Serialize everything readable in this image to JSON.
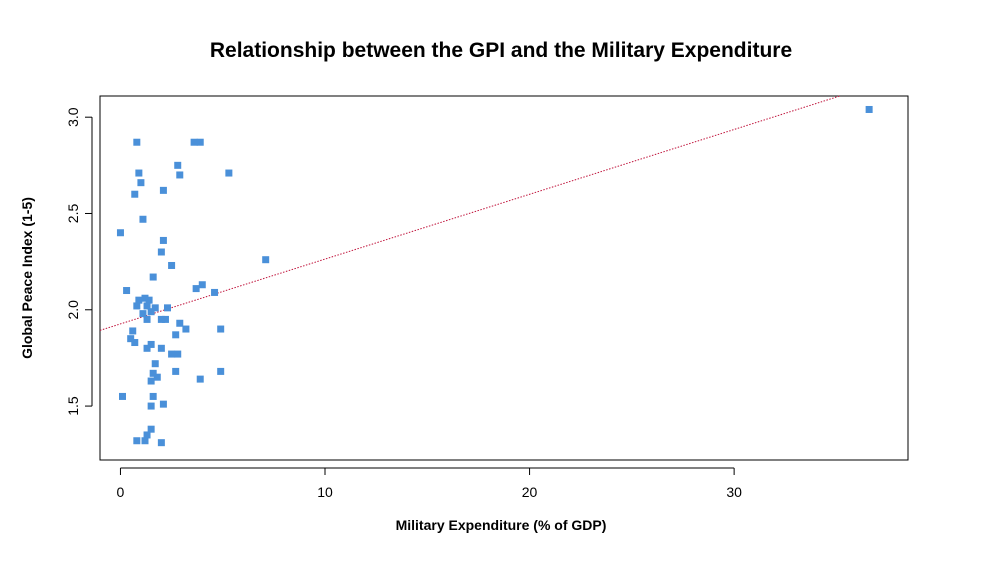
{
  "chart_data": {
    "type": "scatter",
    "title": "Relationship between the GPI and the Military Expenditure",
    "xlabel": "Military Expenditure (% of GDP)",
    "ylabel": "Global Peace Index (1-5)",
    "xlim": [
      -1.0,
      38.5
    ],
    "ylim": [
      1.22,
      3.11
    ],
    "x_ticks": [
      0,
      10,
      20,
      30
    ],
    "x_tick_labels": [
      "0",
      "10",
      "20",
      "30"
    ],
    "y_ticks": [
      1.5,
      2.0,
      2.5,
      3.0
    ],
    "y_tick_labels": [
      "1.5",
      "2.0",
      "2.5",
      "3.0"
    ],
    "grid": false,
    "point_color": "#4a90d9",
    "trendline": {
      "slope": 0.03365,
      "intercept": 1.9267,
      "color": "#c0143c",
      "style": "dotted"
    },
    "points": [
      {
        "x": 0.8,
        "y": 2.87
      },
      {
        "x": 3.6,
        "y": 2.87
      },
      {
        "x": 3.9,
        "y": 2.87
      },
      {
        "x": 2.8,
        "y": 2.75
      },
      {
        "x": 0.9,
        "y": 2.71
      },
      {
        "x": 5.3,
        "y": 2.71
      },
      {
        "x": 2.9,
        "y": 2.7
      },
      {
        "x": 1.0,
        "y": 2.66
      },
      {
        "x": 2.1,
        "y": 2.62
      },
      {
        "x": 0.7,
        "y": 2.6
      },
      {
        "x": 1.1,
        "y": 2.47
      },
      {
        "x": 0.0,
        "y": 2.4
      },
      {
        "x": 2.1,
        "y": 2.36
      },
      {
        "x": 2.0,
        "y": 2.3
      },
      {
        "x": 7.1,
        "y": 2.26
      },
      {
        "x": 2.5,
        "y": 2.23
      },
      {
        "x": 1.6,
        "y": 2.17
      },
      {
        "x": 4.0,
        "y": 2.13
      },
      {
        "x": 3.7,
        "y": 2.11
      },
      {
        "x": 0.3,
        "y": 2.1
      },
      {
        "x": 4.6,
        "y": 2.09
      },
      {
        "x": 1.2,
        "y": 2.06
      },
      {
        "x": 0.9,
        "y": 2.05
      },
      {
        "x": 1.4,
        "y": 2.05
      },
      {
        "x": 0.8,
        "y": 2.02
      },
      {
        "x": 1.3,
        "y": 2.02
      },
      {
        "x": 1.7,
        "y": 2.01
      },
      {
        "x": 2.3,
        "y": 2.01
      },
      {
        "x": 1.1,
        "y": 1.98
      },
      {
        "x": 1.5,
        "y": 1.99
      },
      {
        "x": 1.3,
        "y": 1.95
      },
      {
        "x": 2.0,
        "y": 1.95
      },
      {
        "x": 2.2,
        "y": 1.95
      },
      {
        "x": 2.9,
        "y": 1.93
      },
      {
        "x": 3.2,
        "y": 1.9
      },
      {
        "x": 4.9,
        "y": 1.9
      },
      {
        "x": 0.6,
        "y": 1.89
      },
      {
        "x": 2.7,
        "y": 1.87
      },
      {
        "x": 0.5,
        "y": 1.85
      },
      {
        "x": 0.7,
        "y": 1.83
      },
      {
        "x": 1.5,
        "y": 1.82
      },
      {
        "x": 1.3,
        "y": 1.8
      },
      {
        "x": 2.0,
        "y": 1.8
      },
      {
        "x": 2.5,
        "y": 1.77
      },
      {
        "x": 2.8,
        "y": 1.77
      },
      {
        "x": 1.7,
        "y": 1.72
      },
      {
        "x": 2.7,
        "y": 1.68
      },
      {
        "x": 4.9,
        "y": 1.68
      },
      {
        "x": 1.6,
        "y": 1.67
      },
      {
        "x": 1.8,
        "y": 1.65
      },
      {
        "x": 1.5,
        "y": 1.63
      },
      {
        "x": 3.9,
        "y": 1.64
      },
      {
        "x": 0.1,
        "y": 1.55
      },
      {
        "x": 1.6,
        "y": 1.55
      },
      {
        "x": 2.1,
        "y": 1.51
      },
      {
        "x": 1.5,
        "y": 1.5
      },
      {
        "x": 1.5,
        "y": 1.38
      },
      {
        "x": 1.3,
        "y": 1.35
      },
      {
        "x": 0.8,
        "y": 1.32
      },
      {
        "x": 1.2,
        "y": 1.32
      },
      {
        "x": 2.0,
        "y": 1.31
      },
      {
        "x": 36.6,
        "y": 3.04
      }
    ]
  }
}
